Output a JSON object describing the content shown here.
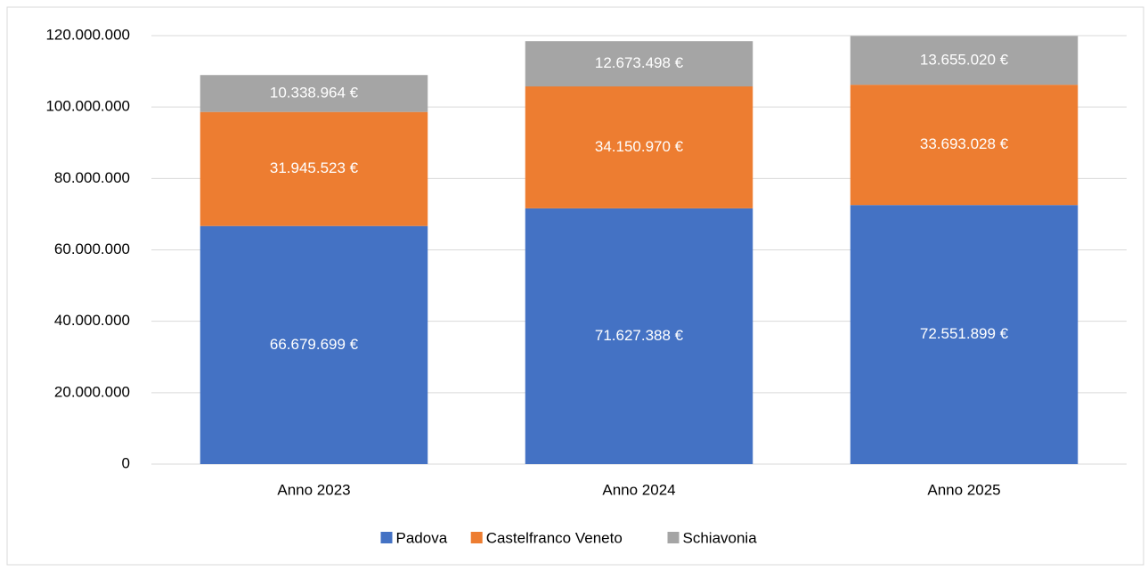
{
  "chart_data": {
    "type": "stacked_bar",
    "categories": [
      "Anno 2023",
      "Anno 2024",
      "Anno 2025"
    ],
    "series": [
      {
        "name": "Padova",
        "color": "#4472c4",
        "values": [
          66679699,
          71627388,
          72551899
        ],
        "value_labels": [
          "66.679.699 €",
          "71.627.388 €",
          "72.551.899 €"
        ]
      },
      {
        "name": "Castelfranco Veneto",
        "color": "#ed7d31",
        "values": [
          31945523,
          34150970,
          33693028
        ],
        "value_labels": [
          "31.945.523 €",
          "34.150.970 €",
          "33.693.028 €"
        ]
      },
      {
        "name": "Schiavonia",
        "color": "#a5a5a5",
        "values": [
          10338964,
          12673498,
          13655020
        ],
        "value_labels": [
          "10.338.964 €",
          "12.673.498 €",
          "13.655.020 €"
        ]
      }
    ],
    "ylim": [
      0,
      120000000
    ],
    "yticks": [
      0,
      {
        "value": 20000000,
        "label": "20.000.000"
      },
      {
        "value": 40000000,
        "label": "40.000.000"
      },
      {
        "value": 60000000,
        "label": "60.000.000"
      },
      {
        "value": 80000000,
        "label": "80.000.000"
      },
      {
        "value": 100000000,
        "label": "100.000.000"
      },
      {
        "value": 120000000,
        "label": "120.000.000"
      }
    ],
    "grid": true,
    "legend": "bottom"
  }
}
